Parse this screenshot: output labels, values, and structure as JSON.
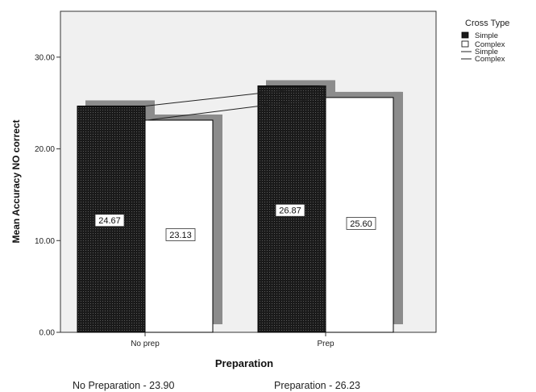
{
  "chart_data": {
    "type": "bar",
    "xlabel": "Preparation",
    "ylabel": "Mean Accuracy NO correct",
    "categories": [
      "No prep",
      "Prep"
    ],
    "ylim": [
      0,
      35
    ],
    "yticks": [
      "0.00",
      "10.00",
      "20.00",
      "30.00"
    ],
    "series": [
      {
        "name": "Simple",
        "values": [
          24.67,
          26.87
        ],
        "data_labels": [
          "24.67",
          "26.87"
        ],
        "color": "#1a1a1a"
      },
      {
        "name": "Complex",
        "values": [
          23.13,
          25.6
        ],
        "data_labels": [
          "23.13",
          "25.60"
        ],
        "color": "#ffffff"
      }
    ],
    "legend": {
      "title": "Cross Type",
      "position": "top-right",
      "entries": [
        "Simple",
        "Complex",
        "Simple",
        "Complex"
      ]
    },
    "background": "#f0f0f0",
    "shadow_color": "#8c8c8c"
  },
  "footer": {
    "left": "No Preparation - 23.90",
    "right": "Preparation - 26.23"
  }
}
